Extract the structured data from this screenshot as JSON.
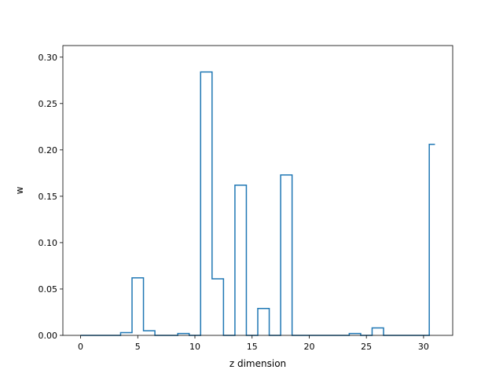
{
  "chart_data": {
    "type": "line",
    "step": "mid",
    "xlabel": "z dimension",
    "ylabel": "w",
    "xlim": [
      -1.55,
      32.55
    ],
    "ylim": [
      0.0,
      0.3125
    ],
    "xticks": [
      0,
      5,
      10,
      15,
      20,
      25,
      30
    ],
    "yticks": [
      0.0,
      0.05,
      0.1,
      0.15,
      0.2,
      0.25,
      0.3
    ],
    "xtick_labels": [
      "0",
      "5",
      "10",
      "15",
      "20",
      "25",
      "30"
    ],
    "ytick_labels": [
      "0.00",
      "0.05",
      "0.10",
      "0.15",
      "0.20",
      "0.25",
      "0.30"
    ],
    "grid": false,
    "series": [
      {
        "color": "#1f77b4",
        "x": [
          0,
          1,
          2,
          3,
          4,
          5,
          6,
          7,
          8,
          9,
          10,
          11,
          12,
          13,
          14,
          15,
          16,
          17,
          18,
          19,
          20,
          21,
          22,
          23,
          24,
          25,
          26,
          27,
          28,
          29,
          30,
          31
        ],
        "y": [
          0.0,
          0.0,
          0.0,
          0.0,
          0.003,
          0.062,
          0.005,
          0.0,
          0.0,
          0.002,
          0.0,
          0.284,
          0.061,
          0.0,
          0.162,
          0.0,
          0.029,
          0.0,
          0.173,
          0.0,
          0.0,
          0.0,
          0.0,
          0.0,
          0.002,
          0.0,
          0.008,
          0.0,
          0.0,
          0.0,
          0.0,
          0.206
        ]
      }
    ]
  }
}
